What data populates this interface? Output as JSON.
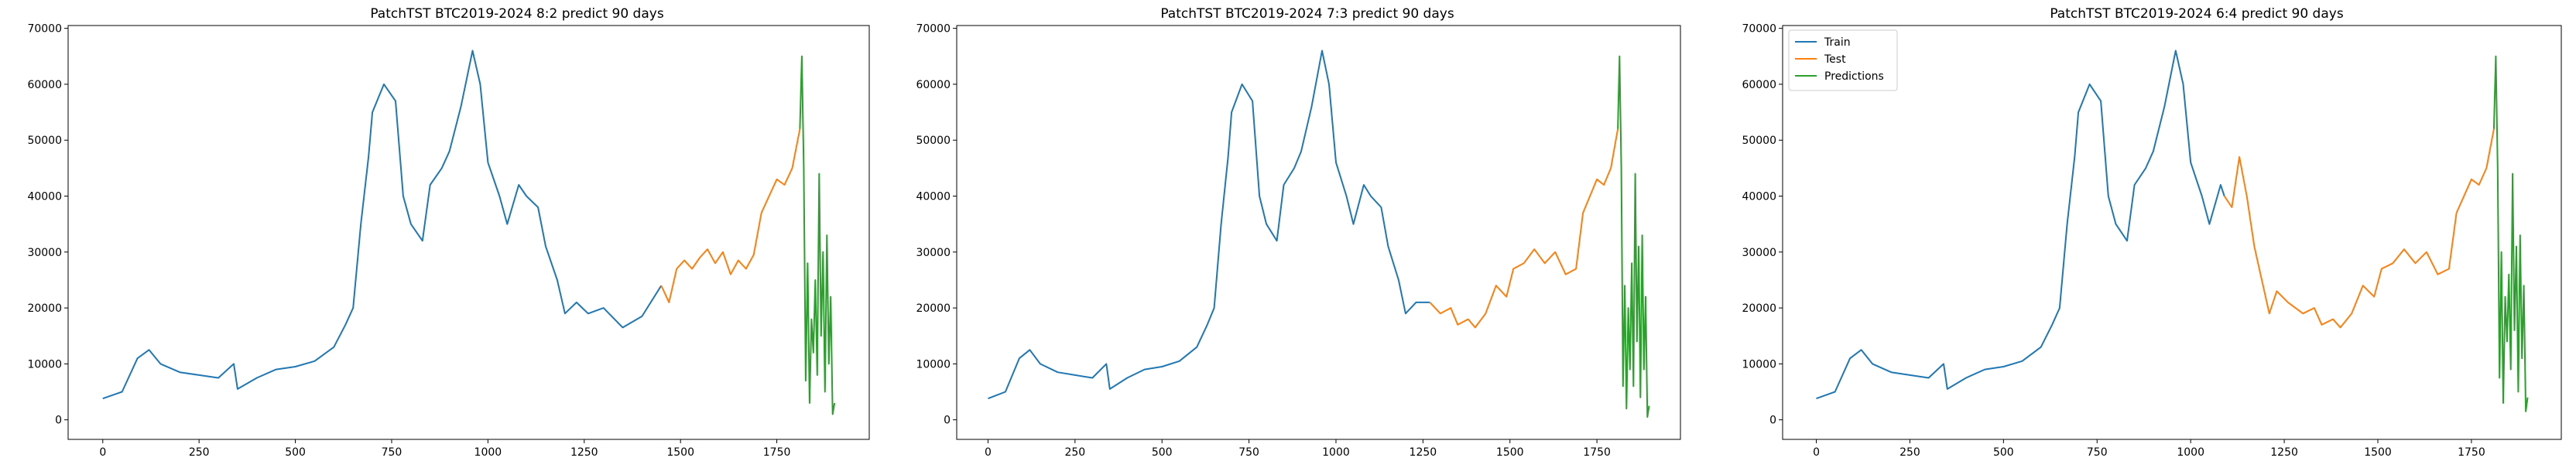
{
  "chart_data": [
    {
      "type": "line",
      "title": "PatchTST BTC2019-2024 8:2 predict 90 days",
      "xlabel": "",
      "ylabel": "",
      "xlim": [
        -90,
        1990
      ],
      "ylim": [
        -3500,
        70500
      ],
      "xticks": [
        0,
        250,
        500,
        750,
        1000,
        1250,
        1500,
        1750
      ],
      "yticks": [
        0,
        10000,
        20000,
        30000,
        40000,
        50000,
        60000,
        70000
      ],
      "grid": false,
      "legend": null,
      "series": [
        {
          "color": "#1f77b4",
          "x": [
            0,
            50,
            90,
            120,
            150,
            200,
            250,
            300,
            340,
            350,
            400,
            450,
            500,
            550,
            600,
            630,
            650,
            670,
            690,
            700,
            730,
            760,
            780,
            800,
            830,
            850,
            880,
            900,
            930,
            960,
            980,
            1000,
            1030,
            1050,
            1080,
            1100,
            1130,
            1150,
            1180,
            1200,
            1230,
            1260,
            1300,
            1350,
            1400,
            1450
          ],
          "y": [
            3800,
            5000,
            11000,
            12500,
            10000,
            8500,
            8000,
            7500,
            10000,
            5500,
            7500,
            9000,
            9500,
            10500,
            13000,
            17000,
            20000,
            35000,
            47000,
            55000,
            60000,
            57000,
            40000,
            35000,
            32000,
            42000,
            45000,
            48000,
            56000,
            66000,
            60000,
            46000,
            40000,
            35000,
            42000,
            40000,
            38000,
            31000,
            25000,
            19000,
            21000,
            19000,
            20000,
            16500,
            18500,
            24000
          ]
        },
        {
          "color": "#ff7f0e",
          "x": [
            1450,
            1470,
            1490,
            1510,
            1530,
            1550,
            1570,
            1590,
            1610,
            1630,
            1650,
            1670,
            1690,
            1710,
            1730,
            1750,
            1770,
            1790,
            1810
          ],
          "y": [
            24000,
            21000,
            27000,
            28500,
            27000,
            29000,
            30500,
            28000,
            30000,
            26000,
            28500,
            27000,
            29500,
            37000,
            40000,
            43000,
            42000,
            45000,
            52000
          ]
        },
        {
          "color": "#2ca02c",
          "x": [
            1810,
            1815,
            1820,
            1825,
            1830,
            1835,
            1840,
            1845,
            1850,
            1855,
            1860,
            1865,
            1870,
            1875,
            1880,
            1885,
            1890,
            1895,
            1900
          ],
          "y": [
            52000,
            65000,
            45000,
            7000,
            28000,
            3000,
            18000,
            12000,
            25000,
            8000,
            44000,
            15000,
            30000,
            5000,
            33000,
            10000,
            22000,
            1000,
            3000
          ]
        }
      ]
    },
    {
      "type": "line",
      "title": "PatchTST BTC2019-2024 7:3 predict 90 days",
      "xlabel": "",
      "ylabel": "",
      "xlim": [
        -90,
        1990
      ],
      "ylim": [
        -3500,
        70500
      ],
      "xticks": [
        0,
        250,
        500,
        750,
        1000,
        1250,
        1500,
        1750
      ],
      "yticks": [
        0,
        10000,
        20000,
        30000,
        40000,
        50000,
        60000,
        70000
      ],
      "grid": false,
      "legend": null,
      "series": [
        {
          "color": "#1f77b4",
          "x": [
            0,
            50,
            90,
            120,
            150,
            200,
            250,
            300,
            340,
            350,
            400,
            450,
            500,
            550,
            600,
            630,
            650,
            670,
            690,
            700,
            730,
            760,
            780,
            800,
            830,
            850,
            880,
            900,
            930,
            960,
            980,
            1000,
            1030,
            1050,
            1080,
            1100,
            1130,
            1150,
            1180,
            1200,
            1230,
            1270
          ],
          "y": [
            3800,
            5000,
            11000,
            12500,
            10000,
            8500,
            8000,
            7500,
            10000,
            5500,
            7500,
            9000,
            9500,
            10500,
            13000,
            17000,
            20000,
            35000,
            47000,
            55000,
            60000,
            57000,
            40000,
            35000,
            32000,
            42000,
            45000,
            48000,
            56000,
            66000,
            60000,
            46000,
            40000,
            35000,
            42000,
            40000,
            38000,
            31000,
            25000,
            19000,
            21000,
            21000
          ]
        },
        {
          "color": "#ff7f0e",
          "x": [
            1270,
            1300,
            1330,
            1350,
            1380,
            1400,
            1430,
            1460,
            1490,
            1510,
            1540,
            1570,
            1600,
            1630,
            1660,
            1690,
            1710,
            1730,
            1750,
            1770,
            1790,
            1810
          ],
          "y": [
            21000,
            19000,
            20000,
            17000,
            18000,
            16500,
            19000,
            24000,
            22000,
            27000,
            28000,
            30500,
            28000,
            30000,
            26000,
            27000,
            37000,
            40000,
            43000,
            42000,
            45000,
            52000
          ]
        },
        {
          "color": "#2ca02c",
          "x": [
            1810,
            1815,
            1820,
            1825,
            1830,
            1835,
            1840,
            1845,
            1850,
            1855,
            1860,
            1865,
            1870,
            1875,
            1880,
            1885,
            1890,
            1895,
            1900
          ],
          "y": [
            52000,
            65000,
            45000,
            6000,
            24000,
            2000,
            20000,
            9000,
            28000,
            6000,
            44000,
            14000,
            31000,
            4000,
            33000,
            9000,
            22000,
            500,
            2500
          ]
        }
      ]
    },
    {
      "type": "line",
      "title": "PatchTST BTC2019-2024 6:4 predict 90 days",
      "xlabel": "",
      "ylabel": "",
      "xlim": [
        -90,
        1990
      ],
      "ylim": [
        -3500,
        70500
      ],
      "xticks": [
        0,
        250,
        500,
        750,
        1000,
        1250,
        1500,
        1750
      ],
      "yticks": [
        0,
        10000,
        20000,
        30000,
        40000,
        50000,
        60000,
        70000
      ],
      "grid": false,
      "legend": {
        "position": "upper left",
        "entries": [
          "Train",
          "Test",
          "Predictions"
        ]
      },
      "series": [
        {
          "name": "Train",
          "color": "#1f77b4",
          "x": [
            0,
            50,
            90,
            120,
            150,
            200,
            250,
            300,
            340,
            350,
            400,
            450,
            500,
            550,
            600,
            630,
            650,
            670,
            690,
            700,
            730,
            760,
            780,
            800,
            830,
            850,
            880,
            900,
            930,
            960,
            980,
            1000,
            1030,
            1050,
            1080,
            1090
          ],
          "y": [
            3800,
            5000,
            11000,
            12500,
            10000,
            8500,
            8000,
            7500,
            10000,
            5500,
            7500,
            9000,
            9500,
            10500,
            13000,
            17000,
            20000,
            35000,
            47000,
            55000,
            60000,
            57000,
            40000,
            35000,
            32000,
            42000,
            45000,
            48000,
            56000,
            66000,
            60000,
            46000,
            40000,
            35000,
            42000,
            40000
          ]
        },
        {
          "name": "Test",
          "color": "#ff7f0e",
          "x": [
            1090,
            1110,
            1130,
            1150,
            1170,
            1190,
            1210,
            1230,
            1260,
            1300,
            1330,
            1350,
            1380,
            1400,
            1430,
            1460,
            1490,
            1510,
            1540,
            1570,
            1600,
            1630,
            1660,
            1690,
            1710,
            1730,
            1750,
            1770,
            1790,
            1810
          ],
          "y": [
            40000,
            38000,
            47000,
            40000,
            31000,
            25000,
            19000,
            23000,
            21000,
            19000,
            20000,
            17000,
            18000,
            16500,
            19000,
            24000,
            22000,
            27000,
            28000,
            30500,
            28000,
            30000,
            26000,
            27000,
            37000,
            40000,
            43000,
            42000,
            45000,
            52000
          ]
        },
        {
          "name": "Predictions",
          "color": "#2ca02c",
          "x": [
            1810,
            1815,
            1820,
            1825,
            1830,
            1835,
            1840,
            1845,
            1850,
            1855,
            1860,
            1865,
            1870,
            1875,
            1880,
            1885,
            1890,
            1895,
            1900
          ],
          "y": [
            52000,
            65000,
            45000,
            7500,
            30000,
            3000,
            22000,
            14000,
            26000,
            9000,
            44000,
            16000,
            31000,
            5000,
            33000,
            11000,
            24000,
            1500,
            4000
          ]
        }
      ]
    }
  ]
}
